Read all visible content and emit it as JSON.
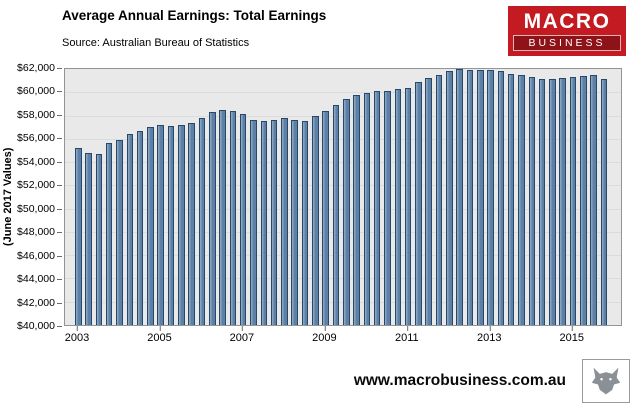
{
  "logo": {
    "line1": "MACRO",
    "line2": "BUSINESS"
  },
  "footer": {
    "url": "www.macrobusiness.com.au"
  },
  "colors": {
    "brand_red": "#c41a22",
    "bar_fill": "#5d81a6",
    "bar_edge": "#26486b",
    "plot_background": "#e9e9e9"
  },
  "chart_data": {
    "type": "bar",
    "title": "Average Annual Earnings: Total Earnings",
    "source": "Source: Australian Bureau of Statistics",
    "ylabel": "(June 2017 Values)",
    "ylim": [
      40000,
      62000
    ],
    "ytick_step": 2000,
    "y_tick_labels": [
      "$62,000",
      "$60,000",
      "$58,000",
      "$56,000",
      "$54,000",
      "$52,000",
      "$50,000",
      "$48,000",
      "$46,000",
      "$44,000",
      "$42,000",
      "$40,000"
    ],
    "x_tick_labels": [
      "2003",
      "2005",
      "2007",
      "2009",
      "2011",
      "2013",
      "2015"
    ],
    "x_start_year": 2003,
    "points_per_year": 4,
    "legend": "none",
    "grid": "faint-horizontal",
    "values": [
      55200,
      54800,
      54700,
      55600,
      55900,
      56400,
      56700,
      57000,
      57200,
      57100,
      57200,
      57400,
      57800,
      58300,
      58500,
      58400,
      58100,
      57600,
      57500,
      57600,
      57800,
      57600,
      57500,
      58000,
      58400,
      58900,
      59400,
      59800,
      59900,
      60100,
      60100,
      60300,
      60400,
      60900,
      61200,
      61500,
      61800,
      62000,
      61900,
      61900,
      61900,
      61800,
      61600,
      61500,
      61300,
      61100,
      61100,
      61200,
      61300,
      61400,
      61500,
      61100
    ]
  }
}
